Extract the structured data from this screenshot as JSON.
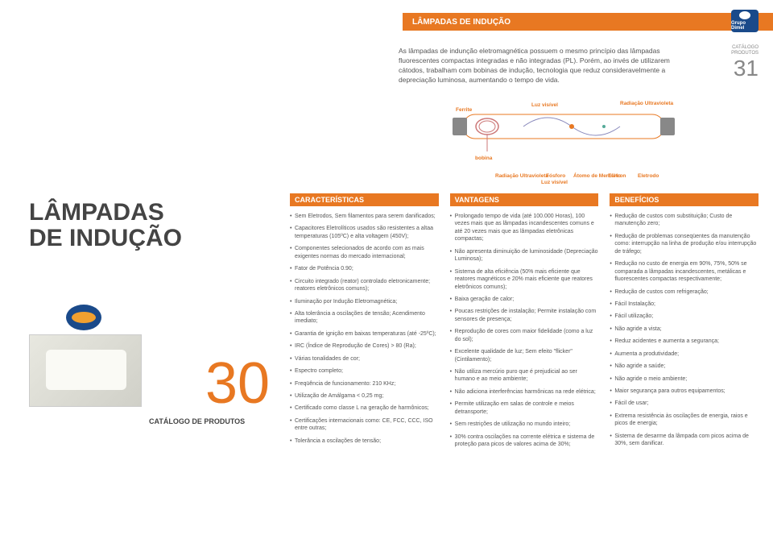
{
  "header": {
    "band": "LÂMPADAS DE INDUÇÃO",
    "logo": "Grupo Dimel"
  },
  "catno": {
    "label1": "CATÁLOGO",
    "label2": "PRODUTOS",
    "num": "31"
  },
  "intro": "As lâmpadas de indunção eletromagnética possuem o mesmo princípio das lâmpadas fluorescentes compactas integradas e não integradas (PL). Porém, ao invés de utilizarem cátodos, trabalham com bobinas de indução, tecnologia que reduz consideravelmente a depreciação luminosa, aumentando o tempo de vida.",
  "diagram": {
    "ferrite": "Ferrite",
    "luzvisivel": "Luz visível",
    "raduv": "Radiação Ultravioleta",
    "bobina": "bobina",
    "fosforo": "Fósforo",
    "atomo": "Átomo de Mercúrio",
    "eletron": "Elétron",
    "eletrodo": "Eletrodo",
    "raduv2": "Radiação Ultravioleta",
    "luzvisivel2": "Luz visível"
  },
  "left": {
    "title1": "LÂMPADAS",
    "title2": "DE INDUÇÃO",
    "bignum": "30",
    "catprod": "CATÁLOGO DE PRODUTOS"
  },
  "cols": {
    "carac": {
      "title": "CARACTERÍSTICAS",
      "items": [
        "Sem Eletrodos, Sem filamentos para serem danificados;",
        "Capacitores Eletrolíticos usados são resistentes a altaa temperaturas (105ºC) e alta voltagem (450V);",
        "Componentes selecionados de acordo com as mais exigentes normas do mercado internacional;",
        "Fator de Potência 0.90;",
        "Circuito integrado (reator) controlado eletronicamente; reatores eletrônicos comuns);",
        "Iluminação por Indução Eletromagnética;",
        "Alta tolerância a oscilações de tensão; Acendimento imediato;",
        "Garantia de ignição em baixas temperaturas (até -25ºC);",
        "IRC (Índice de Reprodução de Cores) > 80 (Ra);",
        "Várias tonalidades de cor;",
        "Espectro completo;",
        "Freqüência de funcionamento: 210 KHz;",
        "Utilização de Amálgama < 0,25 mg;",
        "Certificado como classe L na geração de harmônicos;",
        "Certificações internacionais como: CE, FCC, CCC, ISO entre outras;",
        "Tolerância a oscilações de tensão;"
      ]
    },
    "vant": {
      "title": "VANTAGENS",
      "items": [
        "Prolongado tempo de vida (até 100.000 Horas), 100 vezes mais que as lâmpadas incandescentes comuns e até 20 vezes mais que as lâmpadas eletrônicas compactas;",
        "Não apresenta diminuição de luminosidade (Depreciação Luminosa);",
        "Sistema de alta eficiência (50% mais eficiente que reatores magnéticos e 20% mais eficiente que reatores eletrônicos comuns);",
        "Baixa geração de calor;",
        "Poucas restrições de instalação; Permite instalação com sensores de presença;",
        "Reprodução de cores com maior fidelidade (como a luz do sol);",
        "Excelente qualidade de luz; Sem efeito \"flicker\" (Cintilamento);",
        "Não utiliza mercúrio puro que é prejudicial ao ser humano e ao meio ambiente;",
        "Não adiciona interferências harmônicas na rede elétrica;",
        "Permite utilização em salas de controle e meios detransporte;",
        "Sem restrições de utilização no mundo inteiro;",
        "30% contra oscilações na corrente elétrica e sistema de proteção para picos de valores acima de 30%;"
      ]
    },
    "benef": {
      "title": "BENEFÍCIOS",
      "items": [
        "Redução de custos com substituição; Custo de manutenção zero;",
        "Redução de problemas conseqüentes da manutenção como: interrupção na linha de produção e/ou interrupção de tráfego;",
        "Redução no custo de energia em 90%, 75%, 50% se comparada a lâmpadas incandescentes, metálicas e fluorescentes compactas respectivamente;",
        "Redução de custos com refrigeração;",
        "Fácil Instalação;",
        "Fácil utilização;",
        "Não agride a vista;",
        "Reduz acidentes e aumenta a segurança;",
        "Aumenta a produtividade;",
        "Não agride a saúde;",
        "Não agride o meio ambiente;",
        "Maior segurança para outros equipamentos;",
        "Fácil de usar;",
        "Extrema resistência às oscilações de energia, raios e picos de energia;",
        "Sistema de desarme da lâmpada com picos acima de 30%, sem danificar."
      ]
    }
  },
  "colors": {
    "orange": "#e87822",
    "blue": "#1a4a8a",
    "text": "#555",
    "bg": "#ffffff"
  }
}
